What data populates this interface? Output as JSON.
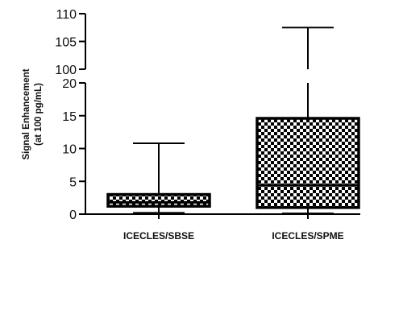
{
  "chart_data": {
    "type": "box",
    "ylabel_lines": [
      "Signal Enhancement",
      "(at 100 pg/mL)"
    ],
    "categories": [
      "ICECLES/SBSE",
      "ICECLES/SPME"
    ],
    "boxes": [
      {
        "category": "ICECLES/SBSE",
        "min": 0.2,
        "q1": 1.2,
        "median": 1.8,
        "q3": 3.0,
        "max": 10.8
      },
      {
        "category": "ICECLES/SPME",
        "min": 0.1,
        "q1": 1.0,
        "median": 4.4,
        "q3": 14.6,
        "max": 107.5
      }
    ],
    "y_axis": {
      "broken": true,
      "lower_segment": {
        "range": [
          0,
          20
        ],
        "ticks": [
          0,
          5,
          10,
          15,
          20
        ]
      },
      "upper_segment": {
        "range": [
          100,
          110
        ],
        "ticks": [
          100,
          105,
          110
        ]
      }
    },
    "grid": false,
    "legend": "none",
    "fill_pattern": "checkerboard",
    "colors": {
      "ink": "#000000",
      "background": "#ffffff"
    }
  }
}
